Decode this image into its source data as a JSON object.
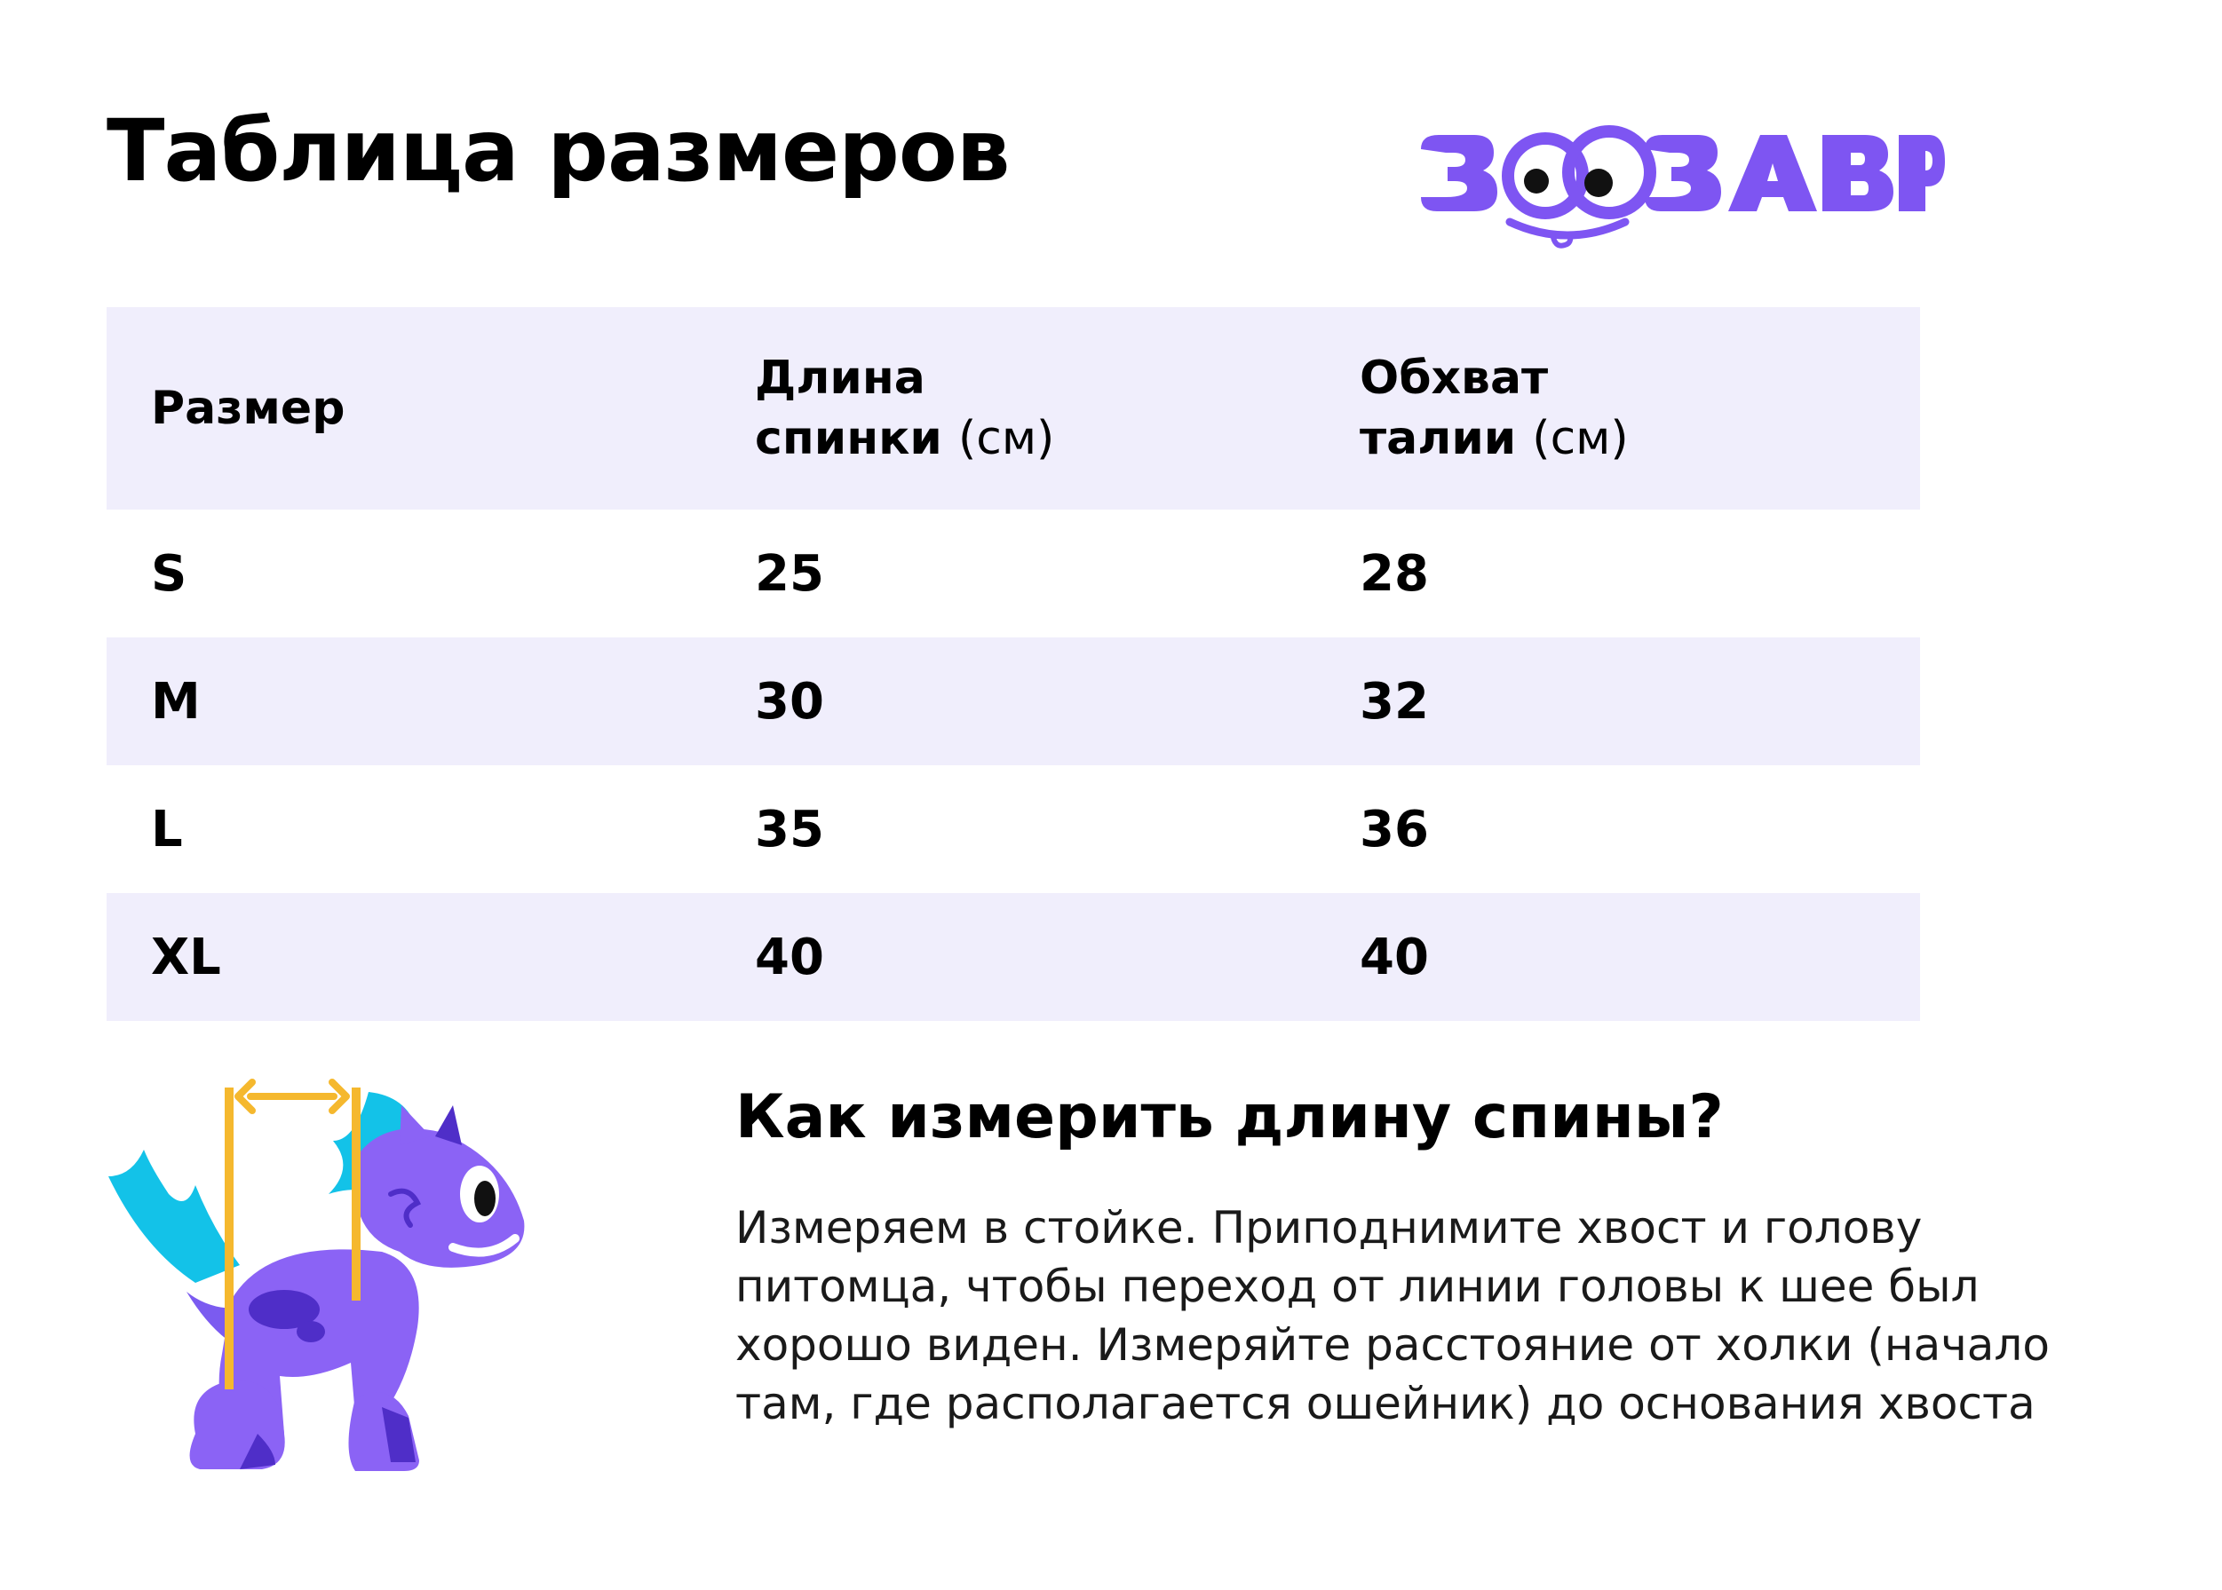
{
  "page": {
    "title": "Таблица размеров",
    "brand": "ЗООЗАВР"
  },
  "table": {
    "headers": [
      {
        "line1": "Размер",
        "line2": "",
        "unit": ""
      },
      {
        "line1": "Длина",
        "line2": "спинки",
        "unit": "(см)"
      },
      {
        "line1": "Обхват",
        "line2": "талии",
        "unit": "(см)"
      }
    ],
    "rows": [
      [
        "S",
        "25",
        "28"
      ],
      [
        "M",
        "30",
        "32"
      ],
      [
        "L",
        "35",
        "36"
      ],
      [
        "XL",
        "40",
        "40"
      ]
    ]
  },
  "howto": {
    "heading": "Как измерить длину спины?",
    "text": "Измеряем в стойке. Приподнимите хвост и голову питомца, чтобы переход от линии головы к шее был хорошо виден. Измеряйте расстояние от холки (начало там, где располагается ошейник) до основания хвоста"
  },
  "colors": {
    "accent": "#7e55f2",
    "table_shade": "#f0eefc",
    "measure_line": "#f5b82e",
    "fin": "#13c2e8"
  },
  "icons": [
    "zoozavr-logo",
    "dino-illustration",
    "measure-arrow-icon"
  ]
}
